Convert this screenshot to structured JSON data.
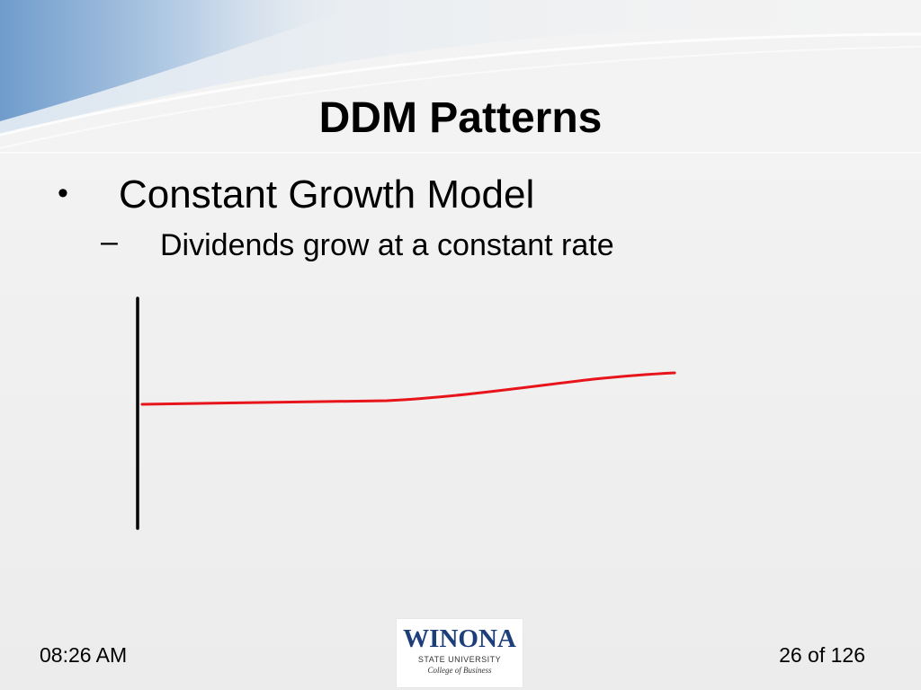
{
  "slide": {
    "title": "DDM Patterns",
    "bullets": [
      {
        "text": "Constant Growth Model",
        "symbol": "•",
        "sub_bullets": [
          {
            "symbol": "–",
            "text": "Dividends grow at a constant rate"
          }
        ]
      }
    ]
  },
  "sketch": {
    "axis_color": "#000000",
    "line_color": "#e8141b"
  },
  "footer": {
    "time": "08:26 AM",
    "page_indicator": "26 of 126",
    "logo": {
      "name": "WINONA",
      "sub": "STATE UNIVERSITY",
      "college": "College of Business"
    }
  }
}
